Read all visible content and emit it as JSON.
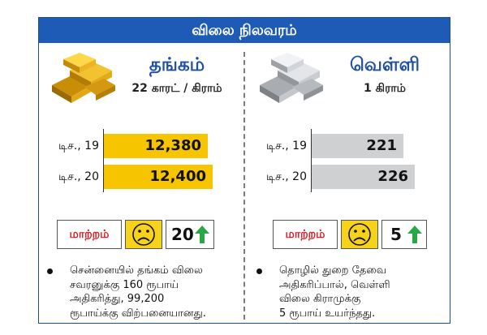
{
  "header": {
    "title": "விலை நிலவரம்"
  },
  "gold": {
    "title": "தங்கம்",
    "subtitle": "22 காரட் / கிராம்",
    "rows": [
      {
        "date": "டிச., 19",
        "value": "12,380"
      },
      {
        "date": "டிச., 20",
        "value": "12,400"
      }
    ],
    "change_label": "மாற்றம்",
    "change_value": "20",
    "note_lines": [
      "சென்னையில் தங்கம் விலை",
      "சவரனுக்கு 160 ரூபாய்",
      "அதிகரித்து, 99,200",
      "ரூபாய்க்கு விற்பனையானது."
    ]
  },
  "silver": {
    "title": "வெள்ளி",
    "subtitle": "1 கிராம்",
    "rows": [
      {
        "date": "டிச., 19",
        "value": "221"
      },
      {
        "date": "டிச., 20",
        "value": "226"
      }
    ],
    "change_label": "மாற்றம்",
    "change_value": "5",
    "note_lines": [
      "தொழில் துறை தேவை",
      "அதிகரிப்பால், வெள்ளி",
      "விலை கிராமுக்கு",
      "5 ரூபாய் உயர்ந்தது."
    ]
  },
  "colors": {
    "header_blue": "#1e5bb6",
    "gold_bar": "#f7c400",
    "silver_bar": "#cfd0d2",
    "change_red": "#d8141c",
    "arrow_green": "#2aa845"
  },
  "icons": {
    "gold": "gold-bars-icon",
    "silver": "silver-bars-icon",
    "face": "sad-face-icon",
    "arrow": "up-arrow-icon"
  }
}
